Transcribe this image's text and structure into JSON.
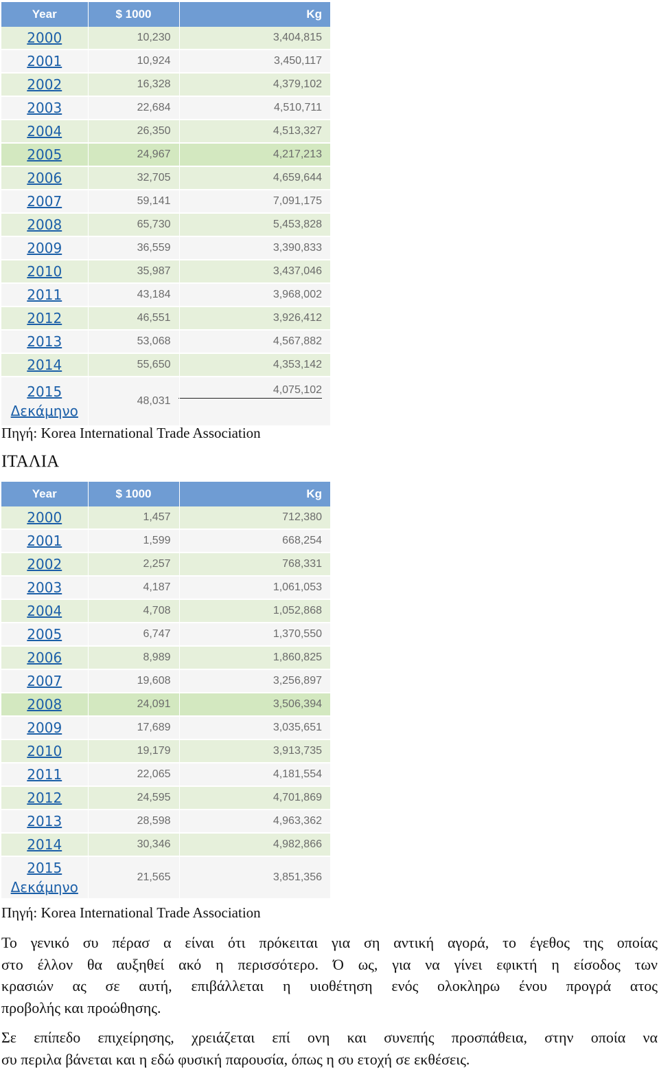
{
  "korea_table": {
    "headers": [
      "Year",
      "$ 1000",
      "Kg"
    ],
    "rows": [
      {
        "year": "2000",
        "usd": "10,230",
        "kg": "3,404,815"
      },
      {
        "year": "2001",
        "usd": "10,924",
        "kg": "3,450,117"
      },
      {
        "year": "2002",
        "usd": "16,328",
        "kg": "4,379,102"
      },
      {
        "year": "2003",
        "usd": "22,684",
        "kg": "4,510,711"
      },
      {
        "year": "2004",
        "usd": "26,350",
        "kg": "4,513,327"
      },
      {
        "year": "2005",
        "usd": "24,967",
        "kg": "4,217,213"
      },
      {
        "year": "2006",
        "usd": "32,705",
        "kg": "4,659,644"
      },
      {
        "year": "2007",
        "usd": "59,141",
        "kg": "7,091,175"
      },
      {
        "year": "2008",
        "usd": "65,730",
        "kg": "5,453,828"
      },
      {
        "year": "2009",
        "usd": "36,559",
        "kg": "3,390,833"
      },
      {
        "year": "2010",
        "usd": "35,987",
        "kg": "3,437,046"
      },
      {
        "year": "2011",
        "usd": "43,184",
        "kg": "3,968,002"
      },
      {
        "year": "2012",
        "usd": "46,551",
        "kg": "3,926,412"
      },
      {
        "year": "2013",
        "usd": "53,068",
        "kg": "4,567,882"
      },
      {
        "year": "2014",
        "usd": "55,650",
        "kg": "4,353,142"
      }
    ],
    "last_row": {
      "year": "2015",
      "period": "Δεκάμηνο",
      "usd": "48,031",
      "kg": "4,075,102"
    },
    "source": "Πηγή: Korea International Trade Association"
  },
  "italy_heading": "ΙΤΑΛΙΑ",
  "italy_table": {
    "headers": [
      "Year",
      "$ 1000",
      "Kg"
    ],
    "rows": [
      {
        "year": "2000",
        "usd": "1,457",
        "kg": "712,380"
      },
      {
        "year": "2001",
        "usd": "1,599",
        "kg": "668,254"
      },
      {
        "year": "2002",
        "usd": "2,257",
        "kg": "768,331"
      },
      {
        "year": "2003",
        "usd": "4,187",
        "kg": "1,061,053"
      },
      {
        "year": "2004",
        "usd": "4,708",
        "kg": "1,052,868"
      },
      {
        "year": "2005",
        "usd": "6,747",
        "kg": "1,370,550"
      },
      {
        "year": "2006",
        "usd": "8,989",
        "kg": "1,860,825"
      },
      {
        "year": "2007",
        "usd": "19,608",
        "kg": "3,256,897"
      },
      {
        "year": "2008",
        "usd": "24,091",
        "kg": "3,506,394"
      },
      {
        "year": "2009",
        "usd": "17,689",
        "kg": "3,035,651"
      },
      {
        "year": "2010",
        "usd": "19,179",
        "kg": "3,913,735"
      },
      {
        "year": "2011",
        "usd": "22,065",
        "kg": "4,181,554"
      },
      {
        "year": "2012",
        "usd": "24,595",
        "kg": "4,701,869"
      },
      {
        "year": "2013",
        "usd": "28,598",
        "kg": "4,963,362"
      },
      {
        "year": "2014",
        "usd": "30,346",
        "kg": "4,982,866"
      }
    ],
    "last_row": {
      "year": "2015",
      "period": "Δεκάμηνο",
      "usd": "21,565",
      "kg": "3,851,356"
    },
    "source": "Πηγή: Korea International Trade Association"
  },
  "paragraph1": [
    "Το γενικό συ πέρασ α είναι ότι πρόκειται για ση αντική αγορά, το έγεθος της οποίας",
    "στο έλλον θα αυξηθεί ακό η περισσότερο. Ό ως, για να γίνει εφικτή η είσοδος των",
    "κρασιών ας σε αυτή, επιβάλλεται η υιοθέτηση ενός ολοκληρω ένου προγρά ατος",
    "προβολής και προώθησης."
  ],
  "paragraph2": [
    "Σε επίπεδο επιχείρησης, χρειάζεται επί ονη και συνεπής προσπάθεια, στην οποία να",
    "συ περιλα βάνεται και η εδώ φυσική παρουσία, όπως η συ ετοχή σε εκθέσεις."
  ]
}
